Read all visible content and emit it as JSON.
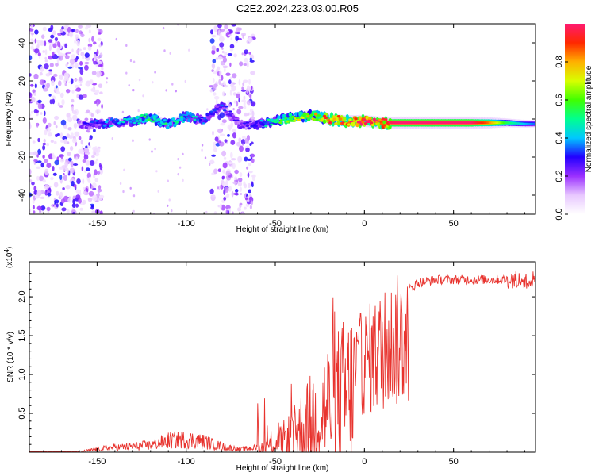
{
  "title": "C2E2.2024.223.03.00.R05",
  "chart_data": [
    {
      "type": "heatmap",
      "name": "spectrogram",
      "xlabel": "Height of straight line (km)",
      "ylabel": "Frequency (Hz)",
      "xlim": [
        -188,
        96
      ],
      "ylim": [
        -50,
        50
      ],
      "xticks": [
        -150,
        -100,
        -50,
        0,
        50
      ],
      "yticks": [
        -40,
        -20,
        0,
        20,
        40
      ],
      "colorbar": {
        "label": "Normalized spectral amplitude",
        "range": [
          0,
          1
        ],
        "ticks": [
          0.0,
          0.2,
          0.4,
          0.6,
          0.8
        ],
        "tick_labels": [
          "0.0",
          "0.2",
          "0.4",
          "0.6",
          "0.8"
        ],
        "colors": [
          "#ffffff",
          "#e8c8ff",
          "#9b30ff",
          "#2200ff",
          "#00c8ff",
          "#00ff90",
          "#40ff00",
          "#d8ff00",
          "#ffb000",
          "#ff2800",
          "#ff1a70"
        ]
      },
      "noise_bands": [
        [
          -188,
          -147
        ],
        [
          -86,
          -62
        ]
      ],
      "ridge": [
        {
          "x": -160,
          "f": -3.0,
          "a": 0.22
        },
        {
          "x": -150,
          "f": -2.5,
          "a": 0.32
        },
        {
          "x": -140,
          "f": -2.0,
          "a": 0.38
        },
        {
          "x": -130,
          "f": -1.0,
          "a": 0.42
        },
        {
          "x": -120,
          "f": 1.0,
          "a": 0.5
        },
        {
          "x": -110,
          "f": -3.0,
          "a": 0.45
        },
        {
          "x": -100,
          "f": 1.5,
          "a": 0.45
        },
        {
          "x": -90,
          "f": -1.0,
          "a": 0.35
        },
        {
          "x": -80,
          "f": 7.0,
          "a": 0.3
        },
        {
          "x": -70,
          "f": -3.0,
          "a": 0.25
        },
        {
          "x": -60,
          "f": -3.0,
          "a": 0.32
        },
        {
          "x": -50,
          "f": -1.0,
          "a": 0.5
        },
        {
          "x": -40,
          "f": 1.0,
          "a": 0.6
        },
        {
          "x": -30,
          "f": 2.0,
          "a": 0.7
        },
        {
          "x": -20,
          "f": 0.0,
          "a": 0.8
        },
        {
          "x": -10,
          "f": -1.0,
          "a": 0.88
        },
        {
          "x": 0,
          "f": -1.0,
          "a": 0.92
        },
        {
          "x": 10,
          "f": -2.0,
          "a": 0.96
        },
        {
          "x": 20,
          "f": -2.0,
          "a": 1.0
        },
        {
          "x": 40,
          "f": -2.0,
          "a": 1.0
        },
        {
          "x": 60,
          "f": -2.0,
          "a": 1.0
        },
        {
          "x": 70,
          "f": -2.0,
          "a": 0.85
        },
        {
          "x": 80,
          "f": -2.0,
          "a": 0.55
        },
        {
          "x": 90,
          "f": -2.5,
          "a": 0.4
        },
        {
          "x": 96,
          "f": -2.5,
          "a": 0.35
        }
      ]
    },
    {
      "type": "line",
      "name": "snr",
      "xlabel": "Height of straight line (km)",
      "ylabel": "SNR (10 * v/v)",
      "y_exponent": "(x10",
      "y_exponent_power": "4",
      "y_exponent_close": ")",
      "xlim": [
        -188,
        96
      ],
      "ylim": [
        0,
        2.45
      ],
      "xticks": [
        -150,
        -100,
        -50,
        0,
        50
      ],
      "yticks": [
        0.5,
        1.0,
        1.5,
        2.0
      ],
      "ytick_labels": [
        "0.5",
        "1.0",
        "1.5",
        "2.0"
      ],
      "color": "#e8332e",
      "envelope": [
        {
          "x": -188,
          "y": 0.01
        },
        {
          "x": -160,
          "y": 0.01
        },
        {
          "x": -150,
          "y": 0.05
        },
        {
          "x": -140,
          "y": 0.08
        },
        {
          "x": -120,
          "y": 0.12
        },
        {
          "x": -110,
          "y": 0.2
        },
        {
          "x": -100,
          "y": 0.22
        },
        {
          "x": -90,
          "y": 0.18
        },
        {
          "x": -80,
          "y": 0.1
        },
        {
          "x": -70,
          "y": 0.05
        },
        {
          "x": -60,
          "y": 0.08
        },
        {
          "x": -50,
          "y": 0.2
        },
        {
          "x": -40,
          "y": 0.45
        },
        {
          "x": -30,
          "y": 0.8
        },
        {
          "x": -20,
          "y": 1.15
        },
        {
          "x": -10,
          "y": 1.4
        },
        {
          "x": 0,
          "y": 1.6
        },
        {
          "x": 10,
          "y": 1.8
        },
        {
          "x": 20,
          "y": 2.0
        },
        {
          "x": 30,
          "y": 2.18
        },
        {
          "x": 40,
          "y": 2.22
        },
        {
          "x": 60,
          "y": 2.22
        },
        {
          "x": 80,
          "y": 2.22
        },
        {
          "x": 96,
          "y": 2.2
        }
      ]
    }
  ]
}
